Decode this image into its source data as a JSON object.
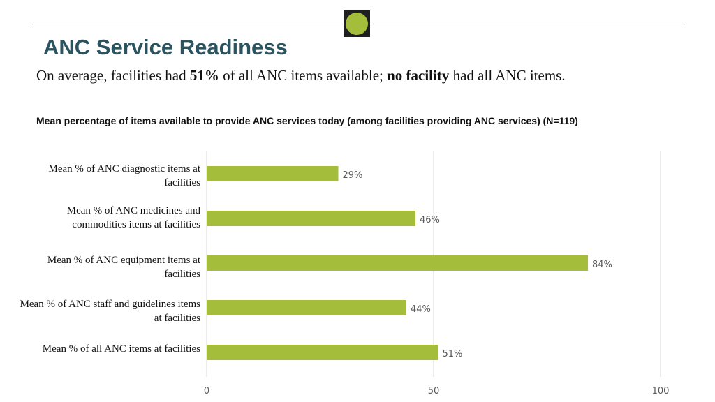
{
  "title": "ANC Service Readiness",
  "subtitle": {
    "part1": "On average, facilities had ",
    "bold1": "51%",
    "part2": " of all ANC items available; ",
    "bold2": "no facility",
    "part3": " had all ANC items."
  },
  "colors": {
    "title": "#2b5460",
    "bar": "#a4bd3a",
    "gridline": "#d9d9d9",
    "logo_dot": "#a4bd3a",
    "logo_bg": "#1f1f1f"
  },
  "chart_data": {
    "type": "bar",
    "orientation": "horizontal",
    "title": "Mean percentage of items available to provide ANC services today (among facilities providing ANC services) (N=119)",
    "categories": [
      "Mean % of ANC diagnostic items at facilities",
      "Mean % of ANC medicines and commodities items at facilities",
      "Mean % of ANC equipment items at facilities",
      "Mean % of ANC staff and guidelines items at facilities",
      "Mean % of all ANC items at facilities"
    ],
    "values": [
      29,
      46,
      84,
      44,
      51
    ],
    "value_labels": [
      "29%",
      "46%",
      "84%",
      "44%",
      "51%"
    ],
    "xlim": [
      0,
      100
    ],
    "xticks": [
      0,
      50,
      100
    ],
    "xtick_labels": [
      "0",
      "50",
      "100"
    ],
    "grid": true,
    "legend": "none"
  }
}
